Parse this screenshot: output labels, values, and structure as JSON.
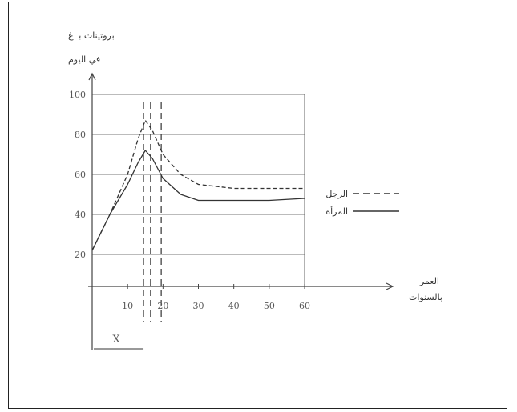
{
  "chart_data": {
    "type": "line",
    "ylabel_line1": "بروتينات بـ غ",
    "ylabel_line2": "في اليوم",
    "xlabel_line1": "العمر",
    "xlabel_line2": "بالسنوات",
    "x_ticks": [
      "10",
      "20",
      "30",
      "40",
      "50",
      "60"
    ],
    "y_ticks": [
      "20",
      "40",
      "60",
      "80",
      "100"
    ],
    "xlim": [
      0,
      60
    ],
    "ylim": [
      20,
      100
    ],
    "grid": true,
    "legend_position": "right",
    "marker_label": "X",
    "series": [
      {
        "name": "الرجل",
        "style": "dashed",
        "x": [
          0,
          5,
          10,
          13,
          15,
          17,
          20,
          25,
          30,
          40,
          50,
          60
        ],
        "y": [
          22,
          40,
          60,
          78,
          87,
          82,
          70,
          60,
          55,
          53,
          53,
          53
        ]
      },
      {
        "name": "المرأة",
        "style": "solid",
        "x": [
          0,
          5,
          10,
          13,
          15,
          17,
          20,
          25,
          30,
          40,
          50,
          60
        ],
        "y": [
          22,
          40,
          55,
          66,
          72,
          68,
          58,
          50,
          47,
          47,
          47,
          48
        ]
      }
    ],
    "vertical_markers_x": [
      14.5,
      16.5,
      19.5
    ]
  }
}
